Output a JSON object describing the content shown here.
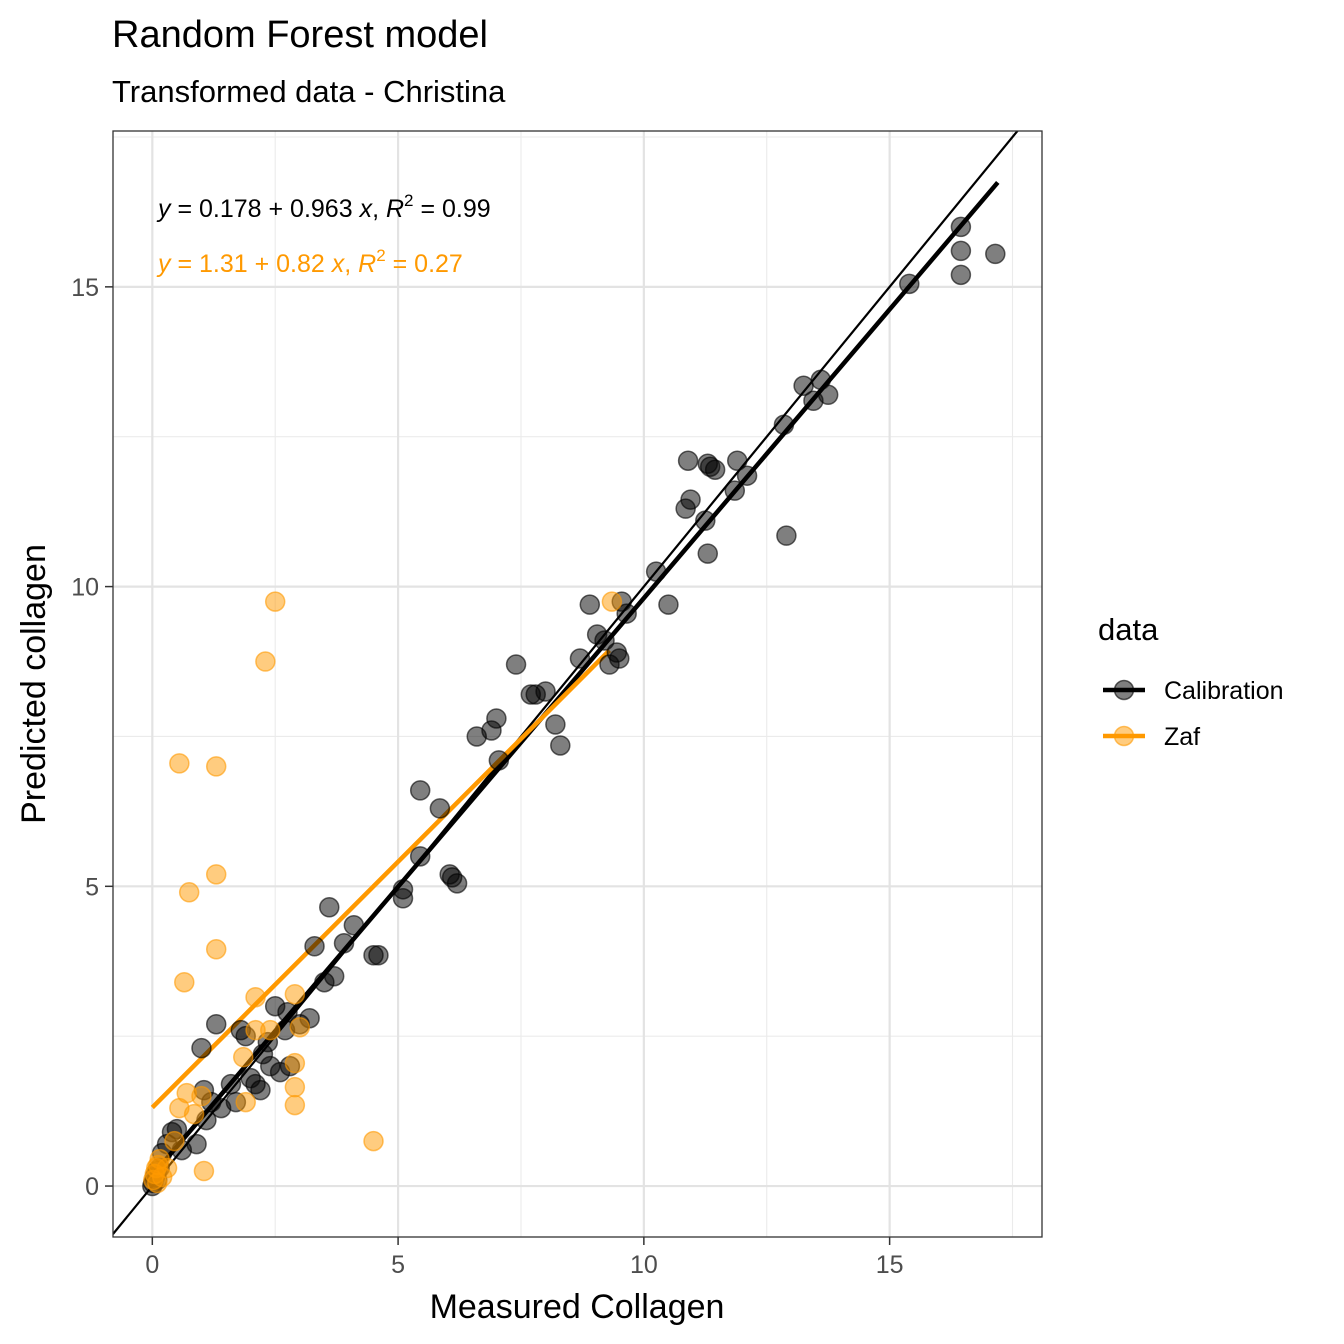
{
  "title": "Random Forest model",
  "subtitle": "Transformed data - Christina",
  "chart_data": {
    "type": "scatter",
    "title": "Random Forest model",
    "subtitle": "Transformed data - Christina",
    "xlabel": "Measured Collagen",
    "ylabel": "Predicted collagen",
    "xlim": [
      -0.8,
      18.1
    ],
    "ylim": [
      -0.85,
      17.6
    ],
    "x_ticks": [
      0,
      5,
      10,
      15
    ],
    "y_ticks": [
      0,
      5,
      10,
      15
    ],
    "x_tick_labels": [
      "0",
      "5",
      "10",
      "15"
    ],
    "y_tick_labels": [
      "0",
      "5",
      "10",
      "15"
    ],
    "grid": true,
    "reference_line": {
      "intercept": 0,
      "slope": 1,
      "color": "#000000"
    },
    "legend": {
      "title": "data",
      "position": "right",
      "entries": [
        {
          "label": "Calibration",
          "color": "#000000"
        },
        {
          "label": "Zaf",
          "color": "#FF9900"
        }
      ]
    },
    "annotations": [
      {
        "series": "Calibration",
        "intercept": "0.178",
        "slope": "0.963",
        "r2": "0.99",
        "color": "#000000"
      },
      {
        "series": "Zaf",
        "intercept": "1.31",
        "slope": "0.82",
        "r2": "0.27",
        "color": "#FF9900"
      }
    ],
    "series": [
      {
        "name": "Calibration",
        "color": "#000000",
        "fit": {
          "intercept": 0.178,
          "slope": 0.963,
          "x_range": [
            0,
            17.2
          ]
        },
        "points": [
          [
            0,
            0
          ],
          [
            0.02,
            0.05
          ],
          [
            0.05,
            0.15
          ],
          [
            0.1,
            0.25
          ],
          [
            0.1,
            0.1
          ],
          [
            0.15,
            0.3
          ],
          [
            0.2,
            0.55
          ],
          [
            0.3,
            0.7
          ],
          [
            0.4,
            0.9
          ],
          [
            0.5,
            0.95
          ],
          [
            0.6,
            0.6
          ],
          [
            0.9,
            0.7
          ],
          [
            1.0,
            2.3
          ],
          [
            1.05,
            1.6
          ],
          [
            1.1,
            1.1
          ],
          [
            1.2,
            1.4
          ],
          [
            1.3,
            2.7
          ],
          [
            1.4,
            1.3
          ],
          [
            1.6,
            1.7
          ],
          [
            1.7,
            1.4
          ],
          [
            1.8,
            2.6
          ],
          [
            1.9,
            2.5
          ],
          [
            2.0,
            1.8
          ],
          [
            2.1,
            1.7
          ],
          [
            2.2,
            1.6
          ],
          [
            2.25,
            2.2
          ],
          [
            2.35,
            2.4
          ],
          [
            2.4,
            2.0
          ],
          [
            2.5,
            3.0
          ],
          [
            2.6,
            1.9
          ],
          [
            2.7,
            2.6
          ],
          [
            2.75,
            2.9
          ],
          [
            2.8,
            2.0
          ],
          [
            3.0,
            2.7
          ],
          [
            3.2,
            2.8
          ],
          [
            3.3,
            4.0
          ],
          [
            3.5,
            3.4
          ],
          [
            3.6,
            4.65
          ],
          [
            3.7,
            3.5
          ],
          [
            3.9,
            4.05
          ],
          [
            4.1,
            4.35
          ],
          [
            4.5,
            3.85
          ],
          [
            4.6,
            3.85
          ],
          [
            5.1,
            4.95
          ],
          [
            5.1,
            4.8
          ],
          [
            5.45,
            6.6
          ],
          [
            5.45,
            5.5
          ],
          [
            5.85,
            6.3
          ],
          [
            6.05,
            5.2
          ],
          [
            6.1,
            5.15
          ],
          [
            6.2,
            5.05
          ],
          [
            6.6,
            7.5
          ],
          [
            6.9,
            7.6
          ],
          [
            7.0,
            7.8
          ],
          [
            7.05,
            7.1
          ],
          [
            7.4,
            8.7
          ],
          [
            7.7,
            8.2
          ],
          [
            7.8,
            8.2
          ],
          [
            8.0,
            8.25
          ],
          [
            8.2,
            7.7
          ],
          [
            8.3,
            7.35
          ],
          [
            8.7,
            8.8
          ],
          [
            8.9,
            9.7
          ],
          [
            9.05,
            9.2
          ],
          [
            9.2,
            9.1
          ],
          [
            9.3,
            8.7
          ],
          [
            9.45,
            8.9
          ],
          [
            9.5,
            8.8
          ],
          [
            9.55,
            9.75
          ],
          [
            9.65,
            9.55
          ],
          [
            10.25,
            10.25
          ],
          [
            10.5,
            9.7
          ],
          [
            10.85,
            11.3
          ],
          [
            10.9,
            12.1
          ],
          [
            10.95,
            11.45
          ],
          [
            11.25,
            11.1
          ],
          [
            11.3,
            10.55
          ],
          [
            11.3,
            12.05
          ],
          [
            11.35,
            12.0
          ],
          [
            11.45,
            11.95
          ],
          [
            11.85,
            11.6
          ],
          [
            11.9,
            12.1
          ],
          [
            12.1,
            11.85
          ],
          [
            12.85,
            12.7
          ],
          [
            12.9,
            10.85
          ],
          [
            13.25,
            13.35
          ],
          [
            13.45,
            13.1
          ],
          [
            13.6,
            13.45
          ],
          [
            13.75,
            13.2
          ],
          [
            15.4,
            15.05
          ],
          [
            16.45,
            16.0
          ],
          [
            16.45,
            15.6
          ],
          [
            16.45,
            15.2
          ],
          [
            17.15,
            15.55
          ]
        ]
      },
      {
        "name": "Zaf",
        "color": "#FF9900",
        "fit": {
          "intercept": 1.31,
          "slope": 0.82,
          "x_range": [
            0,
            9.3
          ]
        },
        "points": [
          [
            0.02,
            0.1
          ],
          [
            0.05,
            0.2
          ],
          [
            0.08,
            0.3
          ],
          [
            0.1,
            0.05
          ],
          [
            0.12,
            0.35
          ],
          [
            0.15,
            0.45
          ],
          [
            0.2,
            0.15
          ],
          [
            0.3,
            0.3
          ],
          [
            0.45,
            0.75
          ],
          [
            0.55,
            7.05
          ],
          [
            0.55,
            1.3
          ],
          [
            0.65,
            3.4
          ],
          [
            0.7,
            1.55
          ],
          [
            0.75,
            4.9
          ],
          [
            0.85,
            1.2
          ],
          [
            1.0,
            1.5
          ],
          [
            1.05,
            0.25
          ],
          [
            1.3,
            7.0
          ],
          [
            1.3,
            5.2
          ],
          [
            1.3,
            3.95
          ],
          [
            1.85,
            2.15
          ],
          [
            1.9,
            1.4
          ],
          [
            2.1,
            3.15
          ],
          [
            2.1,
            2.6
          ],
          [
            2.3,
            8.75
          ],
          [
            2.4,
            2.6
          ],
          [
            2.5,
            9.75
          ],
          [
            2.9,
            3.2
          ],
          [
            2.9,
            2.05
          ],
          [
            2.9,
            1.65
          ],
          [
            2.9,
            1.35
          ],
          [
            3.0,
            2.65
          ],
          [
            4.5,
            0.75
          ],
          [
            9.35,
            9.75
          ]
        ]
      }
    ]
  }
}
